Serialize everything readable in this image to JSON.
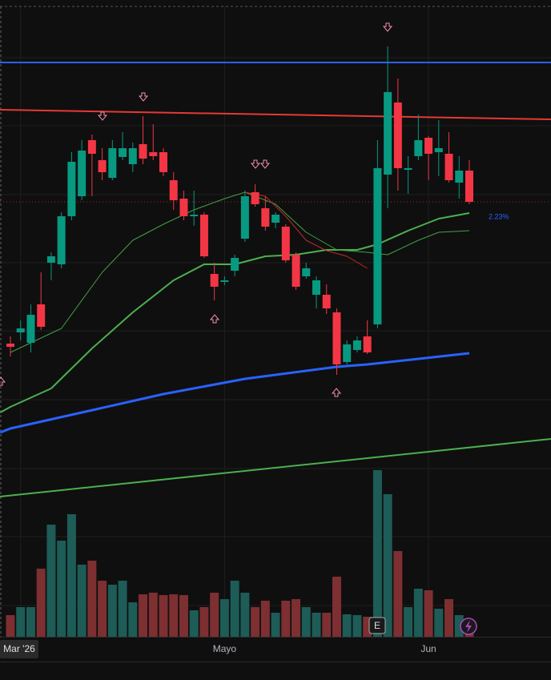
{
  "chart_data": {
    "type": "candlestick",
    "open": [
      371,
      385,
      372,
      420,
      472,
      470,
      530,
      555,
      625,
      600,
      578,
      604,
      595,
      620,
      610,
      610,
      575,
      552,
      530,
      532,
      458,
      448,
      462,
      502,
      560,
      540,
      522,
      517,
      482,
      455,
      432,
      432,
      410,
      348,
      363,
      380,
      395,
      582,
      672,
      588,
      605,
      628,
      610,
      608,
      572,
      587
    ],
    "high": [
      380,
      400,
      420,
      460,
      485,
      535,
      610,
      625,
      632,
      615,
      625,
      635,
      622,
      655,
      645,
      615,
      585,
      562,
      562,
      535,
      472,
      455,
      482,
      562,
      570,
      555,
      535,
      520,
      485,
      472,
      455,
      445,
      415,
      375,
      380,
      400,
      625,
      742,
      702,
      605,
      657,
      630,
      650,
      635,
      605,
      600
    ],
    "low": [
      355,
      375,
      360,
      388,
      450,
      465,
      525,
      550,
      555,
      575,
      575,
      600,
      585,
      595,
      600,
      580,
      538,
      525,
      518,
      478,
      425,
      444,
      455,
      498,
      542,
      512,
      515,
      472,
      438,
      452,
      415,
      408,
      332,
      345,
      360,
      358,
      390,
      540,
      562,
      558,
      600,
      575,
      580,
      572,
      552,
      545
    ],
    "close": [
      367,
      390,
      407,
      392,
      480,
      530,
      598,
      612,
      608,
      585,
      615,
      615,
      615,
      602,
      605,
      585,
      550,
      530,
      532,
      480,
      442,
      450,
      478,
      555,
      545,
      517,
      532,
      475,
      442,
      465,
      450,
      415,
      345,
      370,
      375,
      360,
      590,
      685,
      590,
      590,
      625,
      608,
      615,
      575,
      587,
      548
    ],
    "volume": [
      27,
      37,
      37,
      85,
      140,
      120,
      153,
      90,
      95,
      70,
      65,
      70,
      43,
      53,
      55,
      52,
      53,
      52,
      33,
      37,
      55,
      47,
      70,
      55,
      37,
      45,
      30,
      45,
      47,
      37,
      30,
      30,
      75,
      28,
      27,
      25,
      208,
      178,
      107,
      37,
      60,
      58,
      35,
      47,
      27,
      15
    ],
    "up_color": "#089981",
    "down_color": "#f23645",
    "volume_up_color": "#1d5c57",
    "volume_down_color": "#7d2f31",
    "ylim": [
      0,
      800
    ],
    "volume_ylim": [
      0,
      215
    ],
    "xlim": [
      -1.02,
      53
    ],
    "xticks": [
      {
        "value": 1,
        "label": "Mar '26"
      },
      {
        "value": 21,
        "label": "Mayo"
      },
      {
        "value": 41,
        "label": "Jun"
      }
    ],
    "last_price": 548,
    "overlays": [
      {
        "color": "#2962ff",
        "width": 3,
        "x": [
          -1,
          0,
          7,
          15,
          23,
          32,
          35,
          45
        ],
        "values": [
          260,
          265,
          285,
          308,
          327,
          342,
          345,
          359
        ]
      },
      {
        "color": "#4caf50",
        "width": 2,
        "x": [
          -1,
          0,
          4,
          8,
          12,
          16,
          19,
          22,
          25,
          28,
          31,
          34,
          36,
          39,
          42,
          45
        ],
        "values": [
          285,
          292,
          315,
          365,
          410,
          450,
          470,
          470,
          480,
          482,
          488,
          488,
          495,
          512,
          527,
          534
        ]
      },
      {
        "color": "#43a047",
        "width": 1,
        "x": [
          0,
          5,
          9,
          12,
          15,
          18,
          21,
          23,
          26,
          29,
          32,
          35,
          37,
          40,
          42,
          45
        ],
        "values": [
          360,
          390,
          460,
          500,
          520,
          538,
          552,
          560,
          545,
          510,
          488,
          485,
          482,
          500,
          510,
          512
        ]
      },
      {
        "color": "#c62828",
        "width": 1,
        "x": [
          23,
          25,
          27,
          29,
          31,
          33,
          35
        ],
        "values": [
          560,
          555,
          530,
          500,
          487,
          480,
          465
        ]
      },
      {
        "color": "#2962ff",
        "width": 2,
        "x": [
          -1.02,
          53
        ],
        "values": [
          722,
          722
        ]
      },
      {
        "color": "#e53935",
        "width": 2,
        "x": [
          -1.02,
          53
        ],
        "values": [
          663,
          651
        ]
      },
      {
        "color": "#4caf50",
        "width": 2,
        "x": [
          -1.02,
          53
        ],
        "values": [
          180,
          252
        ]
      }
    ],
    "annotation": "2.23%",
    "annotation_color": "#2962ff",
    "earnings_label": "E"
  }
}
